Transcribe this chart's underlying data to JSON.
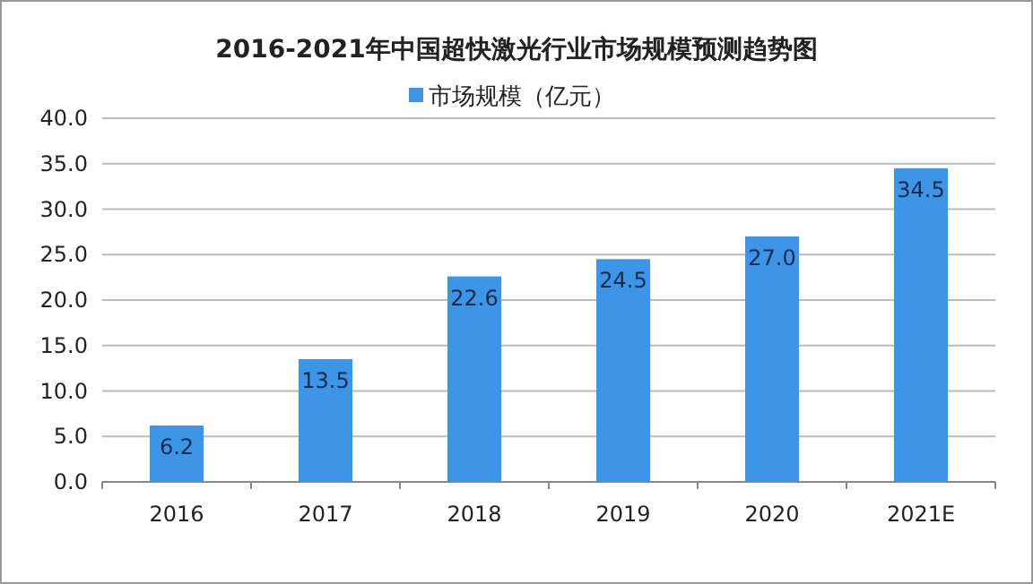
{
  "chart_data": {
    "type": "bar",
    "title": "2016-2021年中国超快激光行业市场规模预测趋势图",
    "categories": [
      "2016",
      "2017",
      "2018",
      "2019",
      "2020",
      "2021E"
    ],
    "series": [
      {
        "name": "市场规模（亿元）",
        "color": "#3d95e8",
        "values": [
          6.2,
          13.5,
          22.6,
          24.5,
          27.0,
          34.5
        ],
        "value_labels": [
          "6.2",
          "13.5",
          "22.6",
          "24.5",
          "27.0",
          "34.5"
        ]
      }
    ],
    "ylim": [
      0,
      40
    ],
    "yticks": [
      {
        "value": 0,
        "label": "0.0"
      },
      {
        "value": 5,
        "label": "5.0"
      },
      {
        "value": 10,
        "label": "10.0"
      },
      {
        "value": 15,
        "label": "15.0"
      },
      {
        "value": 20,
        "label": "20.0"
      },
      {
        "value": 25,
        "label": "25.0"
      },
      {
        "value": 30,
        "label": "30.0"
      },
      {
        "value": 35,
        "label": "35.0"
      },
      {
        "value": 40,
        "label": "40.0"
      }
    ],
    "grid": "y",
    "legend": "top"
  }
}
